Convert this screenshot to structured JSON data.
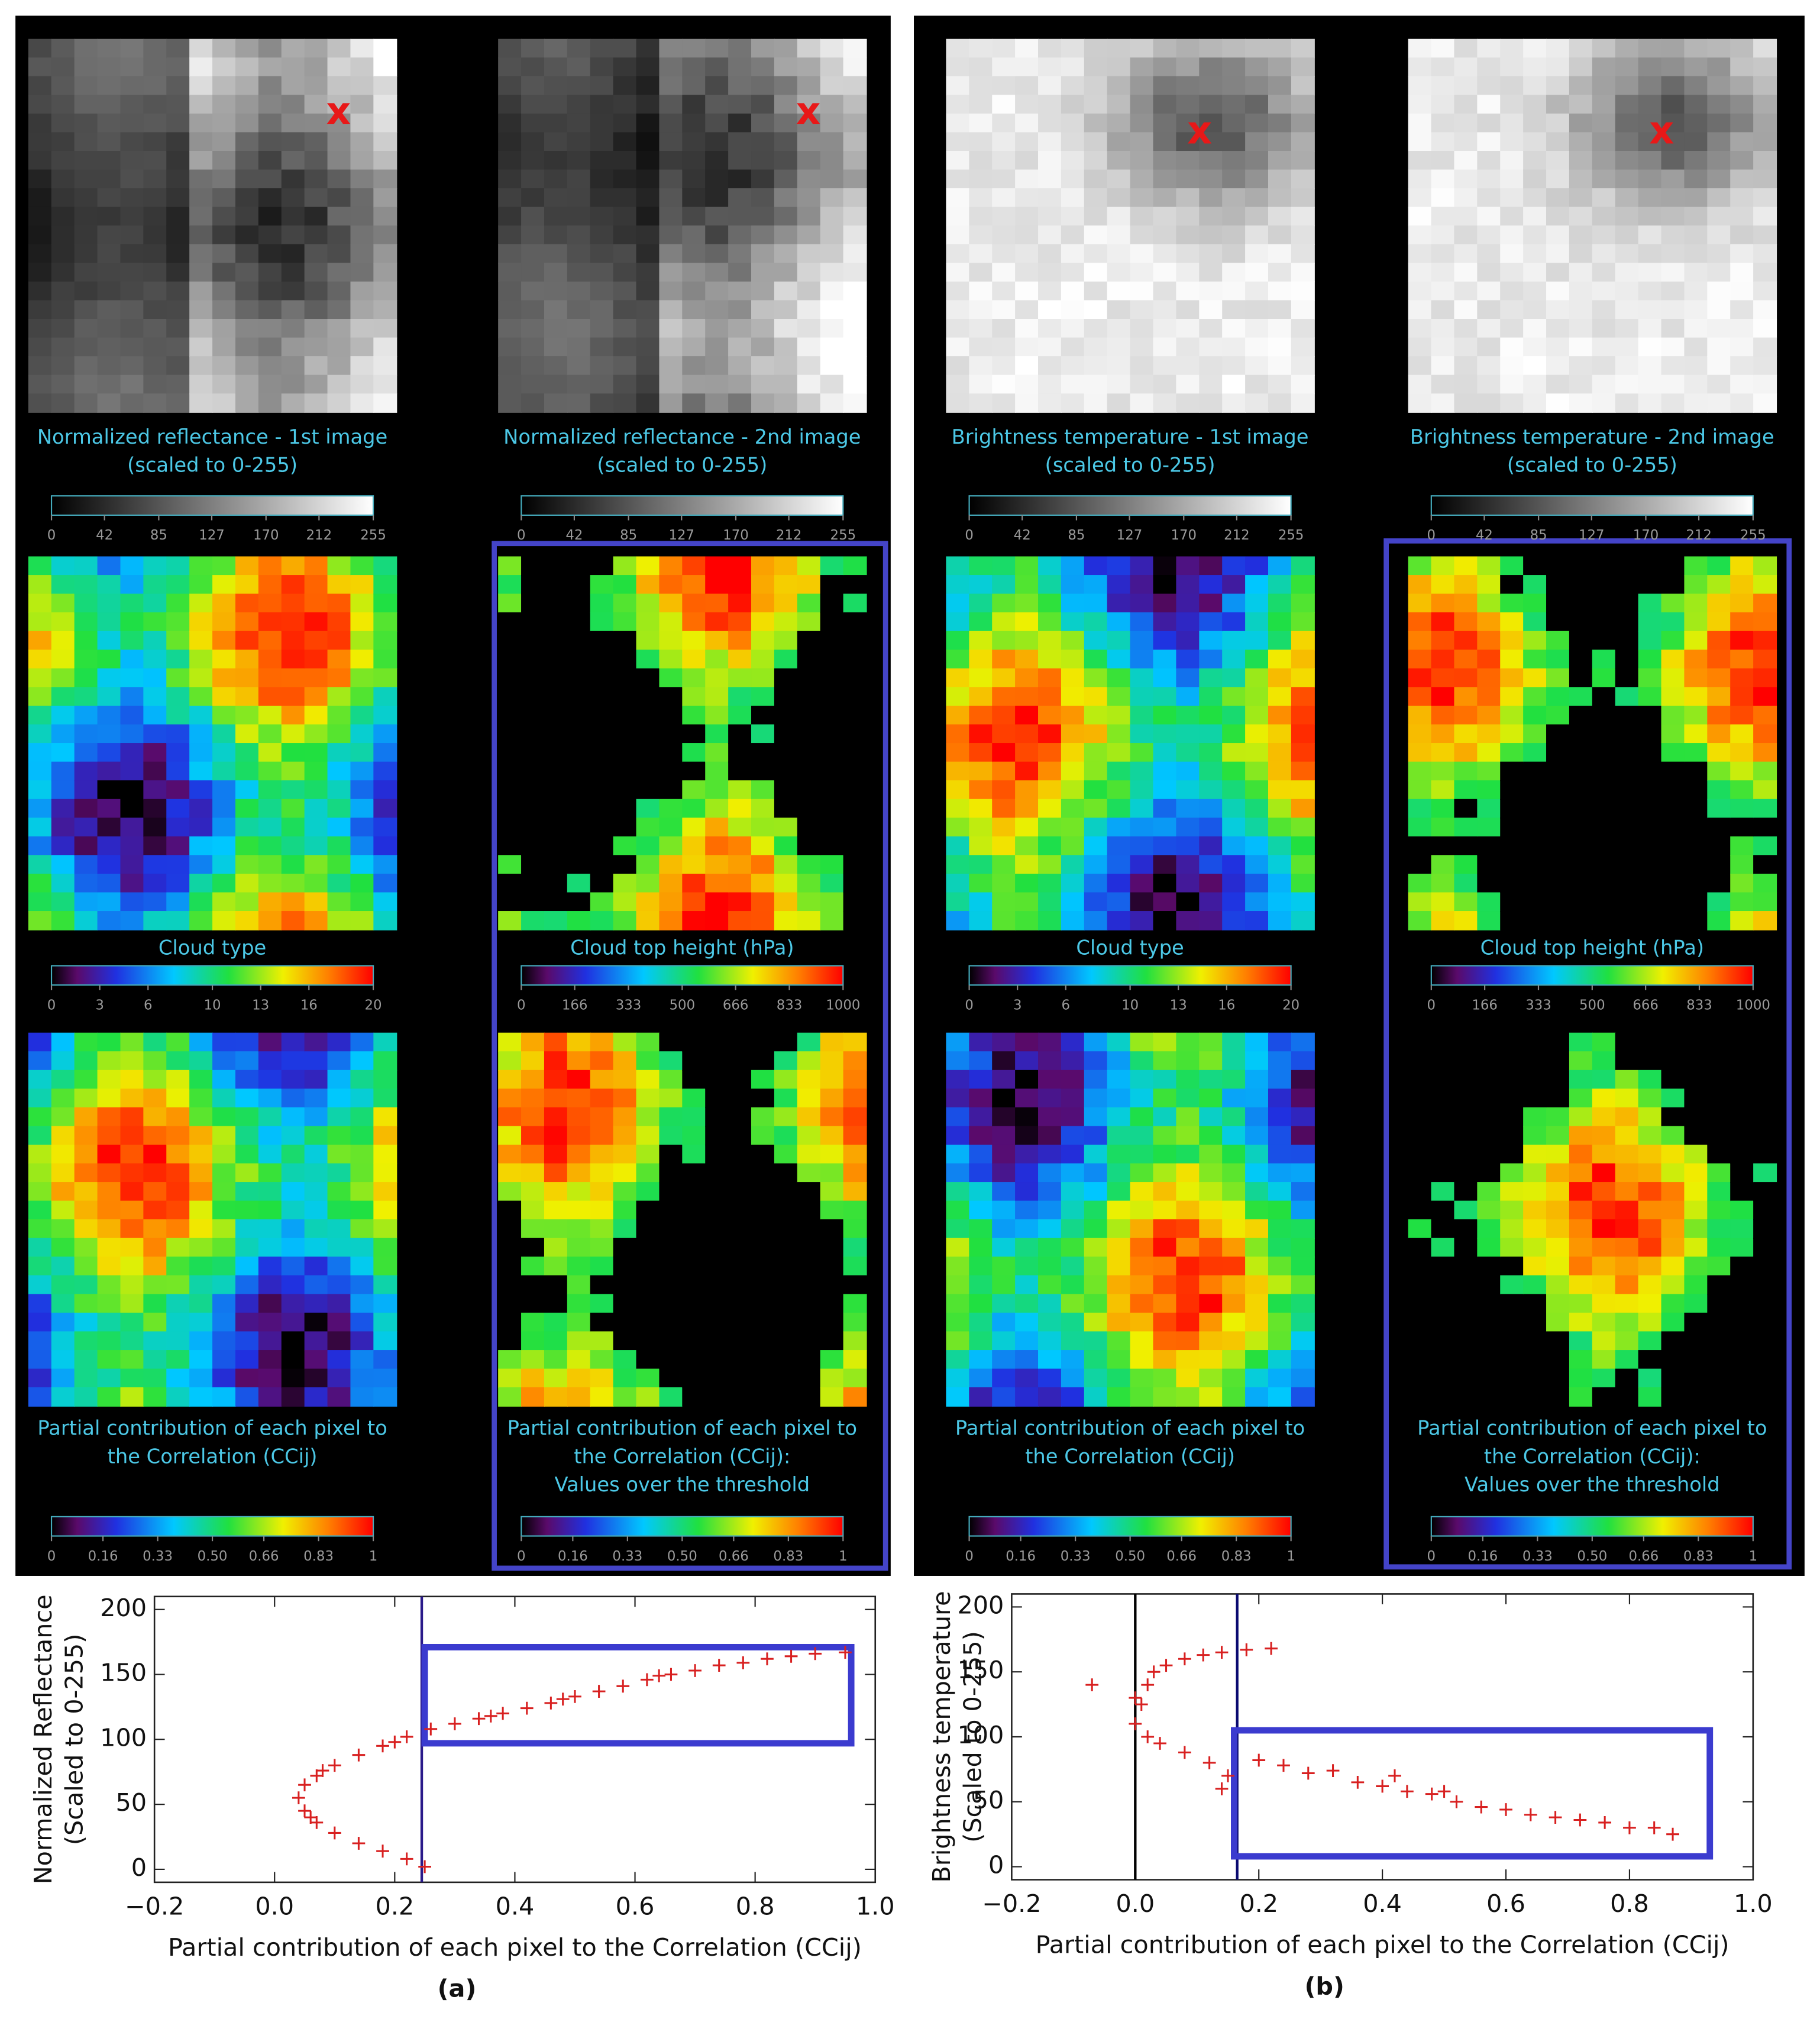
{
  "panels": [
    {
      "maps": [
        {
          "title": [
            "Normalized reflectance - 1st image",
            "(scaled to 0-255)"
          ],
          "marker": "x",
          "colorbar": [
            0,
            42,
            85,
            127,
            170,
            212,
            255
          ]
        },
        {
          "title": [
            "Normalized reflectance - 2nd image",
            "(scaled to 0-255)"
          ],
          "marker": "x",
          "colorbar": [
            0,
            42,
            85,
            127,
            170,
            212,
            255
          ]
        },
        {
          "title": [
            "Cloud type"
          ],
          "colorbar": [
            0,
            3,
            6,
            10,
            13,
            16,
            20
          ]
        },
        {
          "title": [
            "Cloud top height (hPa)"
          ],
          "colorbar": [
            0,
            166,
            333,
            500,
            666,
            833,
            1000
          ]
        },
        {
          "title": [
            "Partial contribution of each pixel to",
            "the Correlation (CCij)"
          ],
          "colorbar": [
            0,
            0.16,
            0.33,
            {
              "value": 0.5,
              "label": "0.50"
            },
            0.66,
            0.83,
            1
          ]
        },
        {
          "title": [
            "Partial contribution of each pixel to",
            "the Correlation (CCij):",
            "Values over the threshold"
          ],
          "colorbar": [
            0,
            0.16,
            0.33,
            {
              "value": 0.5,
              "label": "0.50"
            },
            0.66,
            0.83,
            1
          ]
        }
      ]
    },
    {
      "maps": [
        {
          "title": [
            "Brightness temperature - 1st image",
            "(scaled to 0-255)"
          ],
          "marker": "x",
          "colorbar": [
            0,
            42,
            85,
            127,
            170,
            212,
            255
          ]
        },
        {
          "title": [
            "Brightness temperature - 2nd image",
            "(scaled to 0-255)"
          ],
          "marker": "x",
          "colorbar": [
            0,
            42,
            85,
            127,
            170,
            212,
            255
          ]
        },
        {
          "title": [
            "Cloud type"
          ],
          "colorbar": [
            0,
            3,
            6,
            10,
            13,
            16,
            20
          ]
        },
        {
          "title": [
            "Cloud top height (hPa)"
          ],
          "colorbar": [
            0,
            166,
            333,
            500,
            666,
            833,
            1000
          ]
        },
        {
          "title": [
            "Partial contribution of each pixel to",
            "the Correlation (CCij)"
          ],
          "colorbar": [
            0,
            0.16,
            0.33,
            {
              "value": 0.5,
              "label": "0.50"
            },
            0.66,
            0.83,
            1
          ]
        },
        {
          "title": [
            "Partial contribution of each pixel to",
            "the Correlation (CCij):",
            "Values over the threshold"
          ],
          "colorbar": [
            0,
            0.16,
            0.33,
            {
              "value": 0.5,
              "label": "0.50"
            },
            0.66,
            0.83,
            1
          ]
        }
      ]
    }
  ],
  "chart_data": [
    {
      "type": "scatter",
      "caption": "(a)",
      "xlabel": "Partial contribution of each pixel to the Correlation (CCij)",
      "ylabel": [
        "Normalized Reflectance",
        "(Scaled to 0-255)"
      ],
      "xlim": [
        -0.2,
        1.0
      ],
      "ylim": [
        -10,
        210
      ],
      "xticks": [
        {
          "value": -0.2,
          "label": "−0.2"
        },
        {
          "value": 0,
          "label": "0.0"
        },
        0.2,
        0.4,
        0.6,
        0.8,
        {
          "value": 1,
          "label": "1.0"
        }
      ],
      "yticks": [
        0,
        50,
        100,
        150,
        200
      ],
      "color": "#d82020",
      "x": [
        0.25,
        0.22,
        0.18,
        0.14,
        0.1,
        0.07,
        0.05,
        0.04,
        0.05,
        0.07,
        0.1,
        0.14,
        0.18,
        0.22,
        0.26,
        0.3,
        0.34,
        0.38,
        0.42,
        0.46,
        0.5,
        0.54,
        0.58,
        0.62,
        0.66,
        0.7,
        0.74,
        0.78,
        0.82,
        0.86,
        0.9,
        0.95,
        0.06,
        0.08,
        0.2,
        0.36,
        0.48,
        0.64
      ],
      "values": [
        2,
        8,
        14,
        20,
        28,
        36,
        45,
        55,
        65,
        72,
        80,
        88,
        95,
        102,
        108,
        112,
        116,
        120,
        124,
        128,
        133,
        137,
        141,
        146,
        150,
        153,
        157,
        159,
        162,
        164,
        166,
        167,
        40,
        76,
        98,
        118,
        131,
        149
      ],
      "vlines": [
        {
          "x": 0.245,
          "color": "#2a1a8a"
        }
      ],
      "box": {
        "xlim": [
          0.25,
          0.96
        ],
        "ylim": [
          97,
          171
        ],
        "color": "#3b3bcf"
      }
    },
    {
      "type": "scatter",
      "caption": "(b)",
      "xlabel": "Partial contribution of each pixel to the Correlation (CCij)",
      "ylabel": [
        "Brightness temperature",
        "(Scaled to 0-255)"
      ],
      "xlim": [
        -0.2,
        1.0
      ],
      "ylim": [
        -10,
        210
      ],
      "xticks": [
        {
          "value": -0.2,
          "label": "−0.2"
        },
        {
          "value": 0,
          "label": "0.0"
        },
        0.2,
        0.4,
        0.6,
        0.8,
        {
          "value": 1,
          "label": "1.0"
        }
      ],
      "yticks": [
        0,
        50,
        100,
        150,
        200
      ],
      "color": "#d82020",
      "x": [
        -0.07,
        0.0,
        0.01,
        0.02,
        0.03,
        0.05,
        0.08,
        0.11,
        0.14,
        0.18,
        0.22,
        0.0,
        0.02,
        0.04,
        0.08,
        0.12,
        0.15,
        0.14,
        0.2,
        0.24,
        0.28,
        0.32,
        0.36,
        0.4,
        0.44,
        0.48,
        0.52,
        0.56,
        0.6,
        0.64,
        0.68,
        0.72,
        0.76,
        0.8,
        0.84,
        0.87,
        0.42,
        0.5
      ],
      "values": [
        140,
        110,
        125,
        140,
        150,
        155,
        160,
        163,
        165,
        167,
        168,
        130,
        100,
        95,
        88,
        80,
        70,
        60,
        82,
        78,
        72,
        74,
        65,
        62,
        58,
        56,
        50,
        46,
        44,
        40,
        38,
        36,
        34,
        30,
        30,
        25,
        70,
        58
      ],
      "vlines": [
        {
          "x": 0,
          "color": "#000000"
        },
        {
          "x": 0.165,
          "color": "#0a0a70"
        }
      ],
      "box": {
        "xlim": [
          0.16,
          0.93
        ],
        "ylim": [
          8,
          105
        ],
        "color": "#3b3bcf"
      }
    }
  ]
}
